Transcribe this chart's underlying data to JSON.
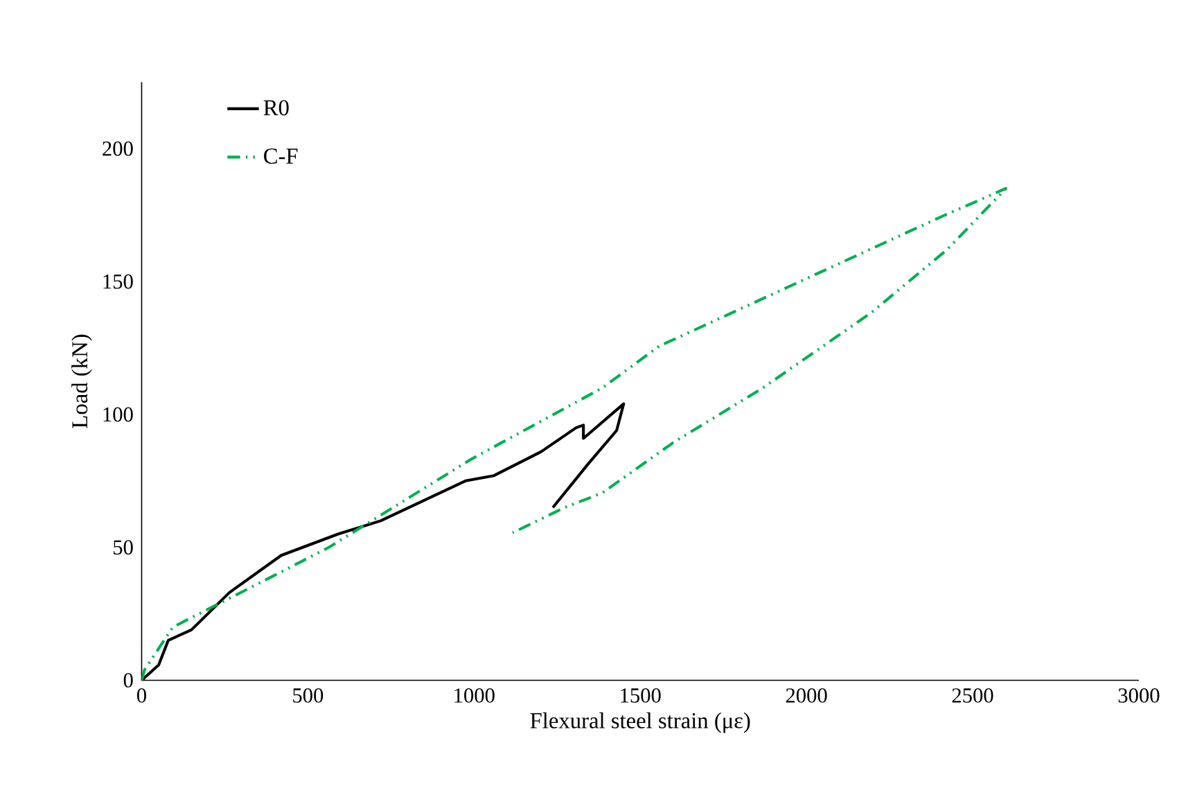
{
  "chart_data": {
    "type": "line",
    "xlabel": "Flexural steel strain (με)",
    "ylabel": "Load (kN)",
    "xlim": [
      0,
      3000
    ],
    "ylim": [
      0,
      225
    ],
    "xticks": [
      0,
      500,
      1000,
      1500,
      2000,
      2500,
      3000
    ],
    "yticks": [
      0,
      50,
      100,
      150,
      200
    ],
    "grid": false,
    "legend": "top left",
    "marker": "none",
    "series": [
      {
        "name": "R0",
        "color": "#000000",
        "line_style": "solid",
        "x": [
          0,
          51,
          80,
          150,
          264,
          420,
          591,
          719,
          974,
          1060,
          1202,
          1307,
          1329,
          1329,
          1450,
          1429,
          1344,
          1237
        ],
        "values": [
          0,
          5.7,
          15,
          19,
          33,
          47,
          55,
          60,
          75,
          77,
          86,
          95,
          96,
          91,
          104,
          94,
          81.5,
          65
        ]
      },
      {
        "name": "C-F",
        "color": "#00b050",
        "line_style": "dashdotdot",
        "x": [
          0,
          9,
          94,
          392,
          563,
          989,
          1386,
          1557,
          2411,
          2600,
          2423,
          2196,
          1869,
          1599,
          1386,
          1273,
          1116
        ],
        "values": [
          0,
          4,
          20,
          39,
          50,
          83,
          110,
          125.7,
          174.7,
          185,
          162,
          138.4,
          110,
          89.4,
          70.5,
          65,
          55.5
        ]
      }
    ]
  }
}
